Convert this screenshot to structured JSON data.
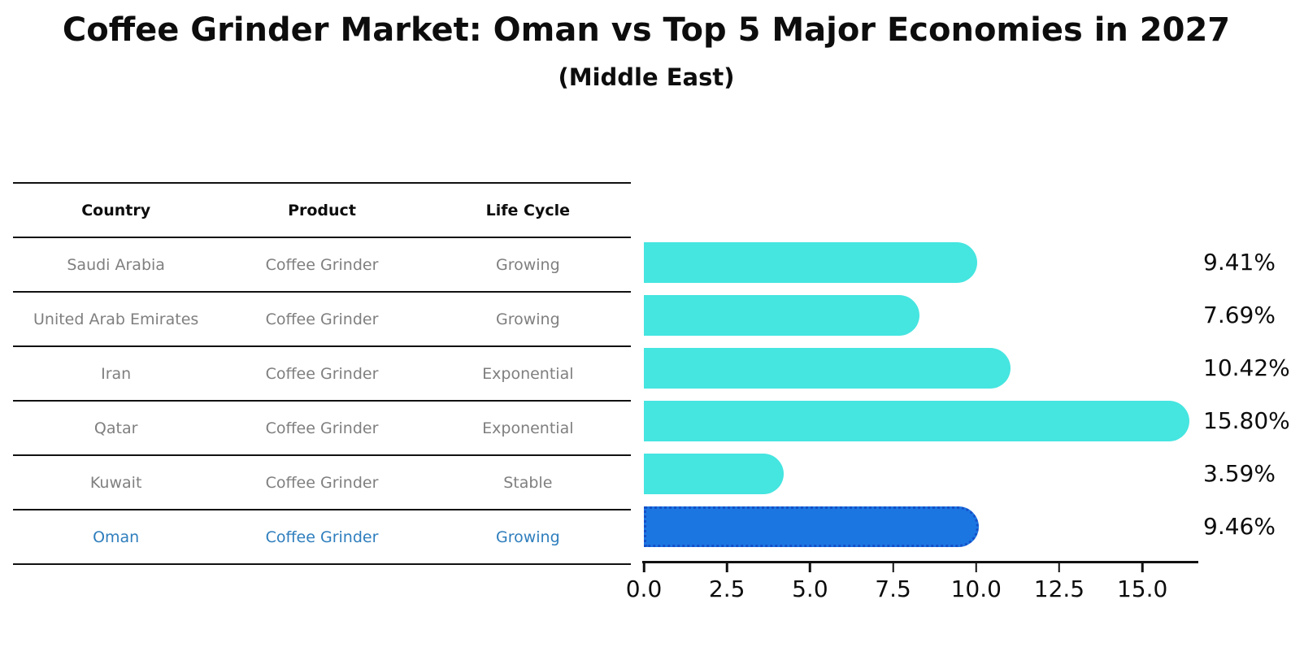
{
  "title": "Coffee Grinder Market: Oman vs Top 5 Major Economies in 2027",
  "subtitle": "(Middle East)",
  "table": {
    "headers": [
      "Country",
      "Product",
      "Life Cycle"
    ],
    "rows": [
      {
        "country": "Saudi Arabia",
        "product": "Coffee Grinder",
        "life_cycle": "Growing",
        "highlight": false
      },
      {
        "country": "United Arab Emirates",
        "product": "Coffee Grinder",
        "life_cycle": "Growing",
        "highlight": false
      },
      {
        "country": "Iran",
        "product": "Coffee Grinder",
        "life_cycle": "Exponential",
        "highlight": false
      },
      {
        "country": "Qatar",
        "product": "Coffee Grinder",
        "life_cycle": "Exponential",
        "highlight": false
      },
      {
        "country": "Kuwait",
        "product": "Coffee Grinder",
        "life_cycle": "Stable",
        "highlight": false
      },
      {
        "country": "Oman",
        "product": "Coffee Grinder",
        "life_cycle": "Growing",
        "highlight": true
      }
    ]
  },
  "chart_data": {
    "type": "bar",
    "orientation": "horizontal",
    "categories": [
      "Saudi Arabia",
      "United Arab Emirates",
      "Iran",
      "Qatar",
      "Kuwait",
      "Oman"
    ],
    "values": [
      9.41,
      7.69,
      10.42,
      15.8,
      3.59,
      9.46
    ],
    "value_labels": [
      "9.41%",
      "7.69%",
      "10.42%",
      "15.80%",
      "3.59%",
      "9.46%"
    ],
    "x_ticks": [
      0.0,
      2.5,
      5.0,
      7.5,
      10.0,
      12.5,
      15.0
    ],
    "x_tick_labels": [
      "0.0",
      "2.5",
      "5.0",
      "7.5",
      "10.0",
      "12.5",
      "15.0"
    ],
    "xlim": [
      0,
      16.66
    ],
    "grid": false,
    "legend": false,
    "highlight_index": 5,
    "bar_color": "#45E5E0",
    "highlight_bar_color": "#1C76E2",
    "highlight_border_color": "#1550C8",
    "highlight_text_color": "#2E7EBD"
  }
}
